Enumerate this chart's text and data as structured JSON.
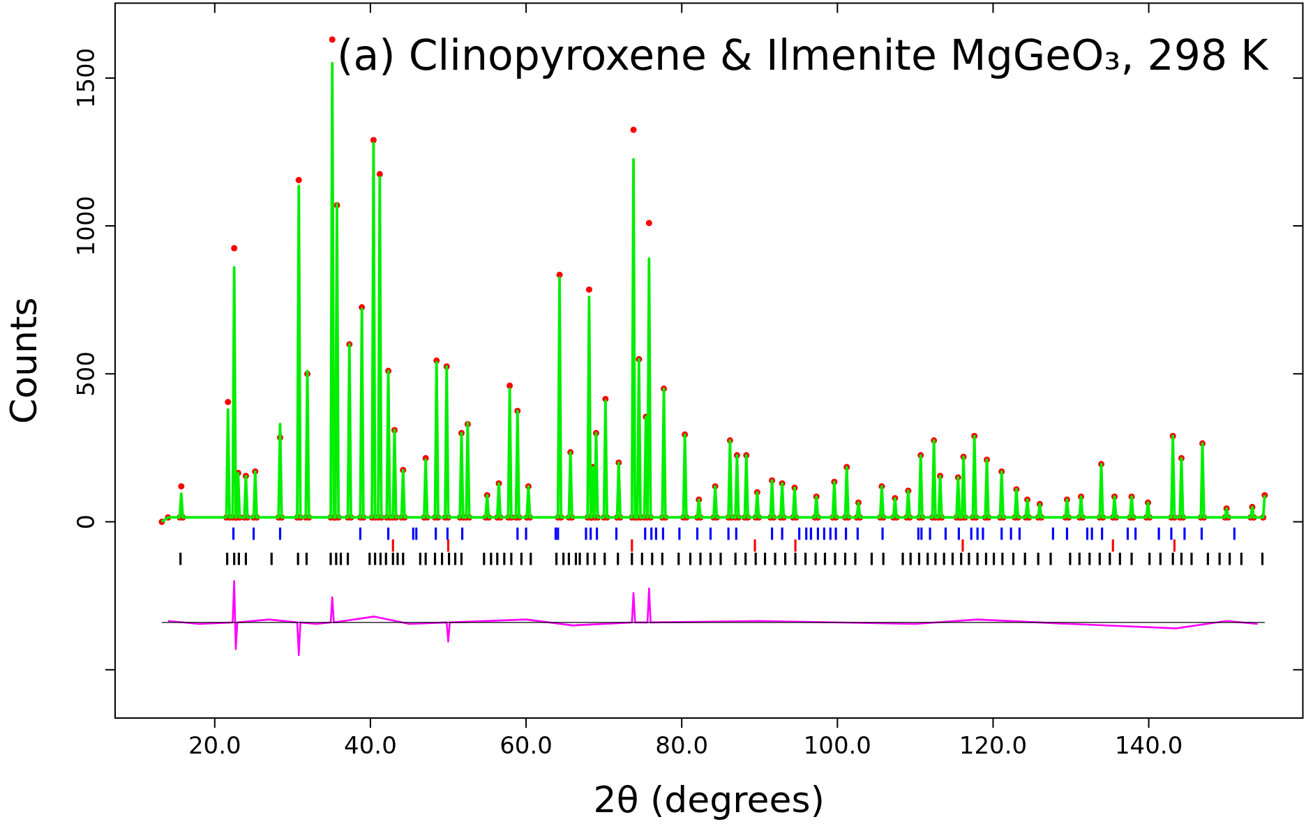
{
  "chart_data": {
    "type": "line",
    "title": "(a) Clinopyroxene & Ilmenite MgGeO₃, 298 K",
    "xlabel": "2θ (degrees)",
    "ylabel": "Counts",
    "xlim": [
      7.2,
      159.8
    ],
    "ylim": [
      -663,
      1753
    ],
    "xticks": [
      {
        "value": 20,
        "label": "20.0"
      },
      {
        "value": 40,
        "label": "40.0"
      },
      {
        "value": 60,
        "label": "60.0"
      },
      {
        "value": 80,
        "label": "80.0"
      },
      {
        "value": 100,
        "label": "100.0"
      },
      {
        "value": 120,
        "label": "120.0"
      },
      {
        "value": 140,
        "label": "140.0"
      }
    ],
    "yticks": [
      {
        "value": -500,
        "label": null
      },
      0,
      500,
      1000,
      1500
    ],
    "grid": false,
    "legend": false,
    "x": [
      13.2,
      14.0,
      15.5,
      15.7,
      15.9,
      21.5,
      21.7,
      21.9,
      22.3,
      22.5,
      22.7,
      22.8,
      23.0,
      23.2,
      23.8,
      24.0,
      24.2,
      25.0,
      25.2,
      25.4,
      28.2,
      28.4,
      28.6,
      30.6,
      30.8,
      31.0,
      31.7,
      31.9,
      32.1,
      34.9,
      35.1,
      35.3,
      35.5,
      35.7,
      35.9,
      37.1,
      37.3,
      37.5,
      38.7,
      38.9,
      39.1,
      40.2,
      40.4,
      40.6,
      41.0,
      41.2,
      41.4,
      42.1,
      42.3,
      42.5,
      42.9,
      43.1,
      43.3,
      44.0,
      44.2,
      44.4,
      46.9,
      47.1,
      47.3,
      48.3,
      48.5,
      48.7,
      49.6,
      49.8,
      50.0,
      51.5,
      51.7,
      51.9,
      52.3,
      52.5,
      52.7,
      54.8,
      55.0,
      55.2,
      56.3,
      56.5,
      56.7,
      57.7,
      57.9,
      58.1,
      58.7,
      58.9,
      59.1,
      60.1,
      60.3,
      60.5,
      64.1,
      64.3,
      64.5,
      65.5,
      65.7,
      65.9,
      67.9,
      68.1,
      68.3,
      68.4,
      68.6,
      68.8,
      69.0,
      69.2,
      70.0,
      70.2,
      70.4,
      71.7,
      71.9,
      72.1,
      73.6,
      73.8,
      74.0,
      74.3,
      74.5,
      74.7,
      75.2,
      75.4,
      75.6,
      75.8,
      76.0,
      77.5,
      77.7,
      77.9,
      80.2,
      80.4,
      80.6,
      82.0,
      82.2,
      82.4,
      84.1,
      84.3,
      84.5,
      86.0,
      86.2,
      86.4,
      86.9,
      87.1,
      87.3,
      88.1,
      88.3,
      88.5,
      89.5,
      89.7,
      89.9,
      91.4,
      91.6,
      91.8,
      92.7,
      92.9,
      93.1,
      94.3,
      94.5,
      94.7,
      97.1,
      97.3,
      97.5,
      99.4,
      99.6,
      99.8,
      101.0,
      101.2,
      101.4,
      102.5,
      102.7,
      102.9,
      105.5,
      105.7,
      105.9,
      107.2,
      107.4,
      107.6,
      108.9,
      109.1,
      109.3,
      110.5,
      110.7,
      110.9,
      112.2,
      112.4,
      112.6,
      113.0,
      113.2,
      113.4,
      115.3,
      115.5,
      115.7,
      116.0,
      116.2,
      116.4,
      117.4,
      117.6,
      117.8,
      119.0,
      119.2,
      119.4,
      120.9,
      121.1,
      121.3,
      122.8,
      123.0,
      123.2,
      124.2,
      124.4,
      124.6,
      125.8,
      126.0,
      126.2,
      129.3,
      129.5,
      129.7,
      131.1,
      131.3,
      131.5,
      133.7,
      133.9,
      134.1,
      135.4,
      135.6,
      135.8,
      137.6,
      137.8,
      138.0,
      139.7,
      139.9,
      140.1,
      142.9,
      143.1,
      143.3,
      144.0,
      144.2,
      144.4,
      146.7,
      146.9,
      147.1,
      149.8,
      150.0,
      150.2,
      153.1,
      153.3,
      153.5,
      154.7,
      154.9
    ],
    "series": [
      {
        "type": "scatter",
        "marker": "circle",
        "color": "#ff0000",
        "values": [
          0,
          15,
          15,
          120,
          15,
          15,
          405,
          15,
          15,
          925,
          15,
          15,
          165,
          15,
          15,
          155,
          15,
          15,
          170,
          15,
          15,
          285,
          15,
          15,
          1155,
          15,
          15,
          500,
          15,
          15,
          1630,
          15,
          15,
          1070,
          15,
          15,
          600,
          15,
          15,
          725,
          15,
          15,
          1290,
          15,
          15,
          1175,
          15,
          15,
          510,
          15,
          15,
          310,
          15,
          15,
          175,
          15,
          15,
          215,
          15,
          15,
          545,
          15,
          15,
          525,
          15,
          15,
          300,
          15,
          15,
          330,
          15,
          15,
          90,
          15,
          15,
          130,
          15,
          15,
          460,
          15,
          15,
          375,
          15,
          15,
          120,
          15,
          15,
          835,
          15,
          15,
          235,
          15,
          15,
          785,
          15,
          15,
          185,
          15,
          300,
          15,
          15,
          415,
          15,
          15,
          200,
          15,
          15,
          1325,
          15,
          15,
          550,
          15,
          15,
          355,
          15,
          1010,
          15,
          15,
          450,
          15,
          15,
          295,
          15,
          15,
          75,
          15,
          15,
          120,
          15,
          15,
          275,
          15,
          15,
          225,
          15,
          15,
          225,
          15,
          15,
          100,
          15,
          15,
          140,
          15,
          15,
          130,
          15,
          15,
          115,
          15,
          15,
          85,
          15,
          15,
          135,
          15,
          15,
          185,
          15,
          15,
          65,
          15,
          15,
          120,
          15,
          15,
          80,
          15,
          15,
          105,
          15,
          15,
          225,
          15,
          15,
          275,
          15,
          15,
          155,
          15,
          15,
          150,
          15,
          15,
          220,
          15,
          15,
          290,
          15,
          15,
          210,
          15,
          15,
          170,
          15,
          15,
          110,
          15,
          15,
          75,
          15,
          15,
          60,
          15,
          15,
          75,
          15,
          15,
          85,
          15,
          15,
          195,
          15,
          15,
          85,
          15,
          15,
          85,
          15,
          15,
          65,
          15,
          15,
          290,
          15,
          15,
          215,
          15,
          15,
          265,
          15,
          15,
          45,
          15,
          15,
          50,
          15,
          15,
          90
        ]
      },
      {
        "marker": "none",
        "color": "#00ee00",
        "values": [
          0,
          15,
          15,
          95,
          15,
          15,
          380,
          15,
          15,
          860,
          15,
          15,
          165,
          15,
          15,
          155,
          15,
          15,
          170,
          15,
          15,
          330,
          15,
          15,
          1135,
          15,
          15,
          510,
          15,
          15,
          1550,
          15,
          15,
          1075,
          15,
          15,
          600,
          15,
          15,
          720,
          15,
          15,
          1280,
          15,
          15,
          1165,
          15,
          15,
          510,
          15,
          15,
          310,
          15,
          15,
          175,
          15,
          15,
          210,
          15,
          15,
          540,
          15,
          15,
          525,
          15,
          15,
          300,
          15,
          15,
          335,
          15,
          15,
          90,
          15,
          15,
          130,
          15,
          15,
          450,
          15,
          15,
          375,
          15,
          15,
          120,
          15,
          15,
          825,
          15,
          15,
          235,
          15,
          15,
          760,
          15,
          15,
          185,
          15,
          300,
          15,
          15,
          410,
          15,
          15,
          200,
          15,
          15,
          1225,
          15,
          15,
          550,
          15,
          15,
          355,
          15,
          890,
          15,
          15,
          450,
          15,
          15,
          295,
          15,
          15,
          75,
          15,
          15,
          120,
          15,
          15,
          275,
          15,
          15,
          225,
          15,
          15,
          225,
          15,
          15,
          100,
          15,
          15,
          140,
          15,
          15,
          130,
          15,
          15,
          115,
          15,
          15,
          85,
          15,
          15,
          135,
          15,
          15,
          185,
          15,
          15,
          65,
          15,
          15,
          120,
          15,
          15,
          80,
          15,
          15,
          105,
          15,
          15,
          225,
          15,
          15,
          275,
          15,
          15,
          155,
          15,
          15,
          150,
          15,
          15,
          220,
          15,
          15,
          290,
          15,
          15,
          210,
          15,
          15,
          170,
          15,
          15,
          110,
          15,
          15,
          75,
          15,
          15,
          60,
          15,
          15,
          75,
          15,
          15,
          85,
          15,
          15,
          195,
          15,
          15,
          85,
          15,
          15,
          85,
          15,
          15,
          65,
          15,
          15,
          290,
          15,
          15,
          215,
          15,
          15,
          265,
          15,
          15,
          45,
          15,
          15,
          50,
          15,
          15,
          90
        ]
      },
      {
        "type": "line",
        "marker": "none",
        "color": "#ff00ff",
        "x": [
          14.0,
          18.0,
          22.3,
          22.5,
          22.7,
          22.9,
          27.0,
          30.6,
          30.8,
          31.0,
          33.0,
          34.9,
          35.1,
          35.3,
          40.5,
          45.0,
          49.8,
          50.0,
          50.2,
          60.0,
          66.0,
          73.6,
          73.8,
          74.0,
          75.6,
          75.8,
          76.0,
          90.0,
          110.0,
          118.0,
          130.0,
          143.5,
          150.0,
          154.0
        ],
        "values": [
          -335,
          -345,
          -340,
          -200,
          -430,
          -340,
          -330,
          -340,
          -450,
          -340,
          -345,
          -340,
          -255,
          -340,
          -320,
          -345,
          -340,
          -405,
          -340,
          -330,
          -350,
          -340,
          -240,
          -340,
          -340,
          -225,
          -340,
          -335,
          -345,
          -330,
          -345,
          -360,
          -335,
          -345
        ]
      },
      {
        "type": "line",
        "marker": "none",
        "color": "#000000",
        "x": [
          13.2,
          154.9
        ],
        "values": [
          -340,
          -340
        ]
      },
      {
        "type": "bar",
        "color": "#0000ff",
        "x": [
          22.4,
          25.0,
          28.4,
          38.7,
          42.3,
          45.5,
          45.9,
          48.4,
          49.9,
          51.8,
          58.9,
          60.0,
          63.8,
          64.1,
          67.7,
          68.3,
          69.1,
          71.6,
          75.3,
          76.1,
          76.7,
          77.6,
          79.7,
          82.0,
          83.7,
          86.0,
          87.0,
          91.6,
          92.9,
          95.1,
          96.0,
          96.6,
          97.5,
          98.3,
          99.1,
          99.8,
          101.1,
          102.6,
          105.8,
          110.4,
          110.8,
          111.9,
          113.9,
          115.6,
          117.2,
          118.0,
          118.7,
          121.1,
          122.3,
          123.4,
          127.7,
          129.5,
          132.1,
          132.7,
          134.0,
          137.3,
          138.3,
          141.3,
          142.9,
          144.6,
          146.8,
          151.0
        ],
        "values": [
          -40,
          -40,
          -40,
          -40,
          -40,
          -40,
          -40,
          -40,
          -40,
          -40,
          -40,
          -40,
          -40,
          -40,
          -40,
          -40,
          -40,
          -40,
          -40,
          -40,
          -40,
          -40,
          -40,
          -40,
          -40,
          -40,
          -40,
          -40,
          -40,
          -40,
          -40,
          -40,
          -40,
          -40,
          -40,
          -40,
          -40,
          -40,
          -40,
          -40,
          -40,
          -40,
          -40,
          -40,
          -40,
          -40,
          -40,
          -40,
          -40,
          -40,
          -40,
          -40,
          -40,
          -40,
          -40,
          -40,
          -40,
          -40,
          -40,
          -40,
          -40,
          -40
        ],
        "base": [
          -20,
          -20,
          -20,
          -20,
          -20,
          -20,
          -20,
          -20,
          -20,
          -20,
          -20,
          -20,
          -20,
          -20,
          -20,
          -20,
          -20,
          -20,
          -20,
          -20,
          -20,
          -20,
          -20,
          -20,
          -20,
          -20,
          -20,
          -20,
          -20,
          -20,
          -20,
          -20,
          -20,
          -20,
          -20,
          -20,
          -20,
          -20,
          -20,
          -20,
          -20,
          -20,
          -20,
          -20,
          -20,
          -20,
          -20,
          -20,
          -20,
          -20,
          -20,
          -20,
          -20,
          -20,
          -20,
          -20,
          -20,
          -20,
          -20,
          -20,
          -20,
          -20
        ]
      },
      {
        "type": "bar",
        "color": "#ff0000",
        "x": [
          42.9,
          50.0,
          73.6,
          89.4,
          94.6,
          116.1,
          135.4,
          143.3
        ],
        "values": [
          -40,
          -40,
          -40,
          -40,
          -40,
          -40,
          -40,
          -40
        ],
        "base": [
          -60,
          -60,
          -60,
          -60,
          -60,
          -60,
          -60,
          -60
        ]
      },
      {
        "type": "bar",
        "color": "#000000",
        "x": [
          15.6,
          21.6,
          22.5,
          23.1,
          24.0,
          27.3,
          30.7,
          31.8,
          34.9,
          35.6,
          36.2,
          37.1,
          39.9,
          40.6,
          41.3,
          42.0,
          42.9,
          43.5,
          44.2,
          46.4,
          47.1,
          48.3,
          49.2,
          50.1,
          50.9,
          51.7,
          54.6,
          55.5,
          56.3,
          57.2,
          58.1,
          59.4,
          60.6,
          63.9,
          64.8,
          65.5,
          66.4,
          66.9,
          67.9,
          68.8,
          70.1,
          71.8,
          73.6,
          74.9,
          76.2,
          77.5,
          79.6,
          81.1,
          82.4,
          83.7,
          85.0,
          86.9,
          88.2,
          89.5,
          90.7,
          92.0,
          93.3,
          94.6,
          95.9,
          97.2,
          98.4,
          99.7,
          101.0,
          102.3,
          104.4,
          105.9,
          108.4,
          109.4,
          110.5,
          111.6,
          112.6,
          113.7,
          114.8,
          115.9,
          116.9,
          118.0,
          119.1,
          120.1,
          121.2,
          122.6,
          124.1,
          125.8,
          127.4,
          129.9,
          131.1,
          132.4,
          133.7,
          135.0,
          136.3,
          137.8,
          140.1,
          141.5,
          143.1,
          144.2,
          145.5,
          147.6,
          149.1,
          150.4,
          151.9,
          154.6
        ],
        "values": [
          -40,
          -40,
          -40,
          -40,
          -40,
          -40,
          -40,
          -40,
          -40,
          -40,
          -40,
          -40,
          -40,
          -40,
          -40,
          -40,
          -40,
          -40,
          -40,
          -40,
          -40,
          -40,
          -40,
          -40,
          -40,
          -40,
          -40,
          -40,
          -40,
          -40,
          -40,
          -40,
          -40,
          -40,
          -40,
          -40,
          -40,
          -40,
          -40,
          -40,
          -40,
          -40,
          -40,
          -40,
          -40,
          -40,
          -40,
          -40,
          -40,
          -40,
          -40,
          -40,
          -40,
          -40,
          -40,
          -40,
          -40,
          -40,
          -40,
          -40,
          -40,
          -40,
          -40,
          -40,
          -40,
          -40,
          -40,
          -40,
          -40,
          -40,
          -40,
          -40,
          -40,
          -40,
          -40,
          -40,
          -40,
          -40,
          -40,
          -40,
          -40,
          -40,
          -40,
          -40,
          -40,
          -40,
          -40,
          -40,
          -40,
          -40,
          -40,
          -40,
          -40,
          -40,
          -40,
          -40,
          -40,
          -40,
          -40,
          -40
        ],
        "base": [
          -105,
          -105,
          -105,
          -105,
          -105,
          -105,
          -105,
          -105,
          -105,
          -105,
          -105,
          -105,
          -105,
          -105,
          -105,
          -105,
          -105,
          -105,
          -105,
          -105,
          -105,
          -105,
          -105,
          -105,
          -105,
          -105,
          -105,
          -105,
          -105,
          -105,
          -105,
          -105,
          -105,
          -105,
          -105,
          -105,
          -105,
          -105,
          -105,
          -105,
          -105,
          -105,
          -105,
          -105,
          -105,
          -105,
          -105,
          -105,
          -105,
          -105,
          -105,
          -105,
          -105,
          -105,
          -105,
          -105,
          -105,
          -105,
          -105,
          -105,
          -105,
          -105,
          -105,
          -105,
          -105,
          -105,
          -105,
          -105,
          -105,
          -105,
          -105,
          -105,
          -105,
          -105,
          -105,
          -105,
          -105,
          -105,
          -105,
          -105,
          -105,
          -105,
          -105,
          -105,
          -105,
          -105,
          -105,
          -105,
          -105,
          -105,
          -105,
          -105,
          -105,
          -105,
          -105,
          -105,
          -105,
          -105,
          -105,
          -105
        ]
      }
    ]
  }
}
